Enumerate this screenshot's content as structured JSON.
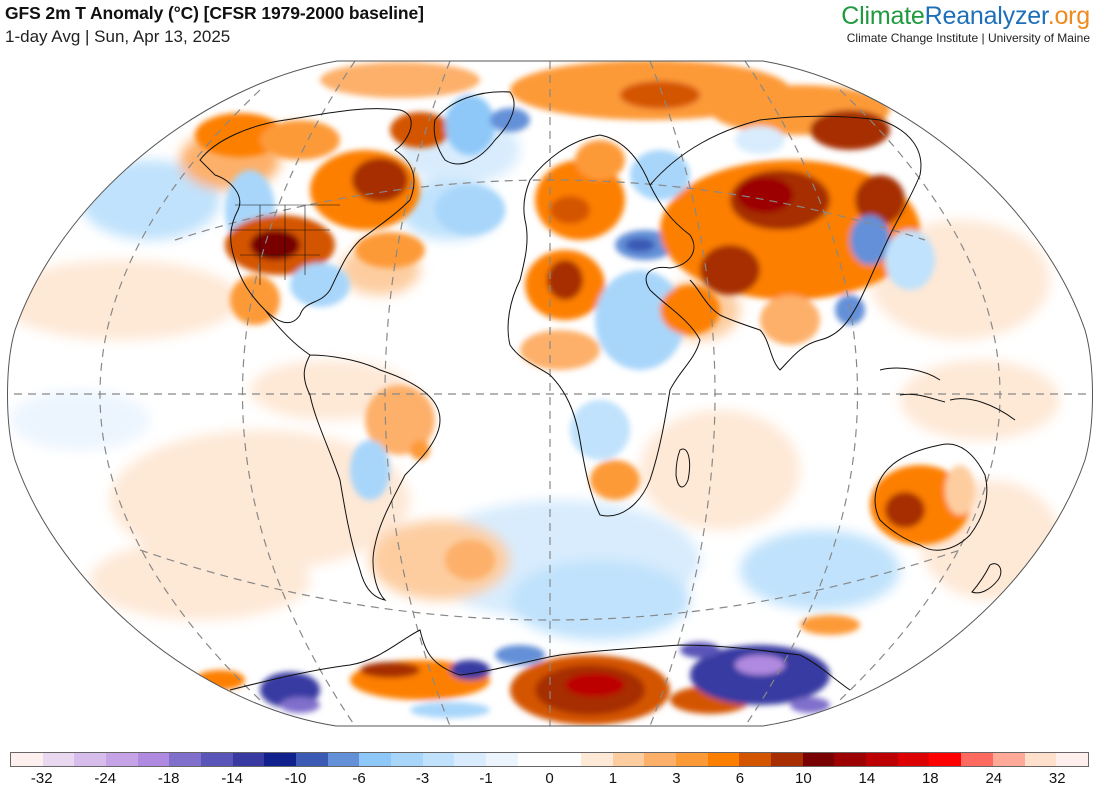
{
  "header": {
    "title": "GFS 2m T Anomaly (°C) [CFSR 1979-2000 baseline]",
    "subtitle": "1-day Avg | Sun, Apr 13, 2025"
  },
  "brand": {
    "logo_part1": "Climate",
    "logo_part2": "Reanalyzer",
    "logo_part3": ".org",
    "tagline": "Climate Change Institute | University of Maine",
    "colors": {
      "green": "#1f9a3f",
      "blue": "#1d6fb8",
      "orange": "#f08a1c"
    }
  },
  "map": {
    "projection": "Winkel-tripel-style global",
    "variable": "2m temperature anomaly",
    "units": "°C",
    "graticule": "dashed gray",
    "features": {
      "warm_regions": [
        "Central US / Great Plains",
        "Eastern Canada / Quebec",
        "Alaska",
        "Greenland (east)",
        "Northwest Africa / Algeria",
        "Europe",
        "Central Asia / Mongolia / Kazakhstan",
        "Iran / Afghanistan",
        "Siberia",
        "Western & Southern Australia",
        "East Antarctica (Atlantic sector)",
        "Antarctic Peninsula"
      ],
      "cold_regions": [
        "Pacific Northwest US",
        "Southeast US",
        "Turkey / Eastern Mediterranean",
        "Northeast Africa",
        "Eastern China",
        "Argentina",
        "Southern Ocean / Indian sector",
        "West Antarctica",
        "Wilkes Land Antarctica"
      ]
    }
  },
  "colorbar": {
    "colors": [
      "#fff0f0",
      "#ead7f0",
      "#d7bdec",
      "#c5a3e6",
      "#b08ae0",
      "#8070cc",
      "#5a55b8",
      "#383aa2",
      "#10208c",
      "#3a5ab4",
      "#6490d8",
      "#8ec8f8",
      "#a8d6fa",
      "#c0e2fc",
      "#d8ecfd",
      "#ecf5fe",
      "#ffffff",
      "#ffffff",
      "#fee8d6",
      "#fdcda0",
      "#fdb06a",
      "#fd9a38",
      "#fd7f00",
      "#d45500",
      "#a62e00",
      "#780000",
      "#9c0000",
      "#bc0000",
      "#dc0000",
      "#ff0000",
      "#ff6a60",
      "#ffaa98",
      "#fee0cc",
      "#fff0ee"
    ],
    "tick_labels": [
      "-32",
      "-24",
      "-18",
      "-14",
      "-10",
      "-6",
      "-3",
      "-1",
      "0",
      "1",
      "3",
      "6",
      "10",
      "14",
      "18",
      "24",
      "32"
    ]
  },
  "chart_data": {
    "type": "heatmap",
    "title": "GFS 2m T Anomaly (°C) [CFSR 1979-2000 baseline]",
    "subtitle": "1-day Avg | Sun, Apr 13, 2025",
    "colorbar_levels": [
      -32,
      -24,
      -18,
      -14,
      -10,
      -6,
      -3,
      -1,
      0,
      1,
      3,
      6,
      10,
      14,
      18,
      24,
      32
    ],
    "units": "°C",
    "legend_position": "bottom"
  }
}
